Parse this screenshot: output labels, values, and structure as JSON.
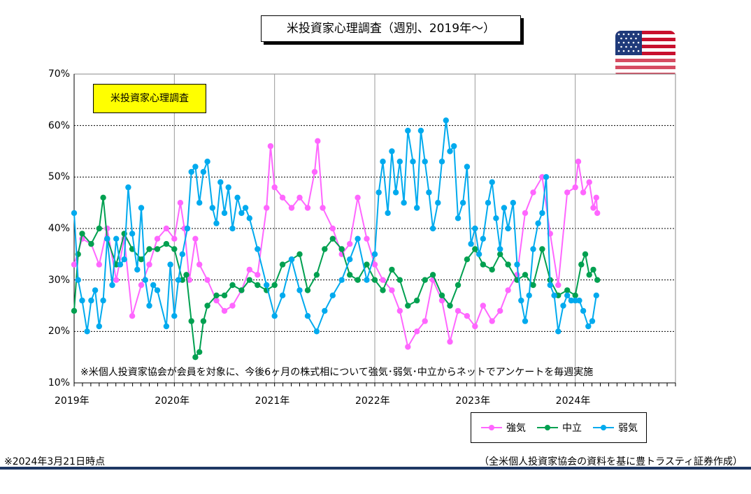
{
  "chart_data": {
    "type": "line",
    "title": "米投資家心理調査（週別、2019年～）",
    "inset_label": "米投資家心理調査",
    "note": "※米個人投資家協会が会員を対象に、今後6ヶ月の株式相について強気･弱気･中立からネットでアンケートを毎週実施",
    "ylim": [
      10,
      70
    ],
    "y_ticks": [
      "10%",
      "20%",
      "30%",
      "40%",
      "50%",
      "60%",
      "70%"
    ],
    "x_ticks": [
      "2019年",
      "2020年",
      "2021年",
      "2022年",
      "2023年",
      "2024年"
    ],
    "xlim": [
      2019.0,
      2025.0
    ],
    "grid": true,
    "legend_position": "bottom-right",
    "series": [
      {
        "name": "強気",
        "color": "#ff66ff",
        "points": [
          [
            2019.0,
            33
          ],
          [
            2019.08,
            38
          ],
          [
            2019.17,
            37
          ],
          [
            2019.25,
            33
          ],
          [
            2019.33,
            40
          ],
          [
            2019.42,
            30
          ],
          [
            2019.5,
            38
          ],
          [
            2019.58,
            23
          ],
          [
            2019.67,
            29
          ],
          [
            2019.75,
            33
          ],
          [
            2019.83,
            38
          ],
          [
            2019.92,
            40
          ],
          [
            2020.0,
            38
          ],
          [
            2020.06,
            45
          ],
          [
            2020.1,
            40
          ],
          [
            2020.15,
            30
          ],
          [
            2020.21,
            38
          ],
          [
            2020.25,
            33
          ],
          [
            2020.33,
            30
          ],
          [
            2020.42,
            26
          ],
          [
            2020.5,
            24
          ],
          [
            2020.58,
            25
          ],
          [
            2020.67,
            28
          ],
          [
            2020.75,
            32
          ],
          [
            2020.83,
            31
          ],
          [
            2020.92,
            44
          ],
          [
            2020.96,
            56
          ],
          [
            2021.0,
            48
          ],
          [
            2021.08,
            46
          ],
          [
            2021.17,
            44
          ],
          [
            2021.25,
            46
          ],
          [
            2021.33,
            44
          ],
          [
            2021.4,
            51
          ],
          [
            2021.43,
            57
          ],
          [
            2021.48,
            44
          ],
          [
            2021.58,
            40
          ],
          [
            2021.67,
            35
          ],
          [
            2021.75,
            37
          ],
          [
            2021.83,
            46
          ],
          [
            2021.92,
            38
          ],
          [
            2022.0,
            33
          ],
          [
            2022.08,
            30
          ],
          [
            2022.17,
            28
          ],
          [
            2022.25,
            24
          ],
          [
            2022.33,
            17
          ],
          [
            2022.42,
            20
          ],
          [
            2022.5,
            22
          ],
          [
            2022.58,
            30
          ],
          [
            2022.67,
            26
          ],
          [
            2022.75,
            18
          ],
          [
            2022.83,
            24
          ],
          [
            2022.92,
            23
          ],
          [
            2023.0,
            21
          ],
          [
            2023.08,
            25
          ],
          [
            2023.17,
            22
          ],
          [
            2023.25,
            24
          ],
          [
            2023.33,
            28
          ],
          [
            2023.42,
            31
          ],
          [
            2023.5,
            43
          ],
          [
            2023.58,
            47
          ],
          [
            2023.67,
            50
          ],
          [
            2023.75,
            39
          ],
          [
            2023.83,
            29
          ],
          [
            2023.92,
            47
          ],
          [
            2024.0,
            48
          ],
          [
            2024.03,
            53
          ],
          [
            2024.08,
            47
          ],
          [
            2024.14,
            49
          ],
          [
            2024.18,
            44
          ],
          [
            2024.21,
            46
          ],
          [
            2024.22,
            43
          ]
        ]
      },
      {
        "name": "中立",
        "color": "#00a050",
        "points": [
          [
            2019.0,
            24
          ],
          [
            2019.04,
            35
          ],
          [
            2019.08,
            39
          ],
          [
            2019.17,
            37
          ],
          [
            2019.25,
            40
          ],
          [
            2019.29,
            46
          ],
          [
            2019.33,
            38
          ],
          [
            2019.42,
            33
          ],
          [
            2019.5,
            39
          ],
          [
            2019.58,
            36
          ],
          [
            2019.67,
            34
          ],
          [
            2019.75,
            36
          ],
          [
            2019.83,
            36
          ],
          [
            2019.92,
            37
          ],
          [
            2020.0,
            36
          ],
          [
            2020.08,
            30
          ],
          [
            2020.12,
            31
          ],
          [
            2020.17,
            22
          ],
          [
            2020.21,
            15
          ],
          [
            2020.25,
            16
          ],
          [
            2020.29,
            22
          ],
          [
            2020.33,
            25
          ],
          [
            2020.42,
            27
          ],
          [
            2020.5,
            27
          ],
          [
            2020.58,
            29
          ],
          [
            2020.67,
            28
          ],
          [
            2020.75,
            30
          ],
          [
            2020.83,
            29
          ],
          [
            2020.92,
            28
          ],
          [
            2021.0,
            29
          ],
          [
            2021.08,
            33
          ],
          [
            2021.17,
            34
          ],
          [
            2021.25,
            35
          ],
          [
            2021.33,
            28
          ],
          [
            2021.42,
            31
          ],
          [
            2021.5,
            36
          ],
          [
            2021.58,
            38
          ],
          [
            2021.67,
            36
          ],
          [
            2021.75,
            31
          ],
          [
            2021.83,
            30
          ],
          [
            2021.92,
            33
          ],
          [
            2022.0,
            30
          ],
          [
            2022.08,
            28
          ],
          [
            2022.17,
            32
          ],
          [
            2022.25,
            30
          ],
          [
            2022.33,
            25
          ],
          [
            2022.42,
            26
          ],
          [
            2022.5,
            30
          ],
          [
            2022.58,
            31
          ],
          [
            2022.67,
            27
          ],
          [
            2022.75,
            25
          ],
          [
            2022.83,
            29
          ],
          [
            2022.92,
            34
          ],
          [
            2023.0,
            36
          ],
          [
            2023.08,
            33
          ],
          [
            2023.17,
            32
          ],
          [
            2023.25,
            35
          ],
          [
            2023.33,
            33
          ],
          [
            2023.42,
            30
          ],
          [
            2023.5,
            31
          ],
          [
            2023.58,
            29
          ],
          [
            2023.67,
            36
          ],
          [
            2023.75,
            30
          ],
          [
            2023.83,
            27
          ],
          [
            2023.92,
            28
          ],
          [
            2024.0,
            27
          ],
          [
            2024.06,
            33
          ],
          [
            2024.1,
            35
          ],
          [
            2024.14,
            31
          ],
          [
            2024.18,
            32
          ],
          [
            2024.22,
            30
          ]
        ]
      },
      {
        "name": "弱気",
        "color": "#00aaee",
        "points": [
          [
            2019.0,
            43
          ],
          [
            2019.04,
            30
          ],
          [
            2019.08,
            26
          ],
          [
            2019.13,
            20
          ],
          [
            2019.17,
            26
          ],
          [
            2019.21,
            28
          ],
          [
            2019.25,
            21
          ],
          [
            2019.29,
            26
          ],
          [
            2019.33,
            38
          ],
          [
            2019.38,
            29
          ],
          [
            2019.42,
            38
          ],
          [
            2019.46,
            33
          ],
          [
            2019.5,
            34
          ],
          [
            2019.54,
            48
          ],
          [
            2019.58,
            39
          ],
          [
            2019.63,
            32
          ],
          [
            2019.67,
            44
          ],
          [
            2019.71,
            30
          ],
          [
            2019.75,
            25
          ],
          [
            2019.79,
            29
          ],
          [
            2019.83,
            28
          ],
          [
            2019.92,
            21
          ],
          [
            2019.96,
            33
          ],
          [
            2020.0,
            23
          ],
          [
            2020.04,
            30
          ],
          [
            2020.08,
            35
          ],
          [
            2020.13,
            40
          ],
          [
            2020.17,
            51
          ],
          [
            2020.21,
            52
          ],
          [
            2020.25,
            45
          ],
          [
            2020.29,
            51
          ],
          [
            2020.33,
            53
          ],
          [
            2020.38,
            44
          ],
          [
            2020.42,
            41
          ],
          [
            2020.46,
            49
          ],
          [
            2020.5,
            43
          ],
          [
            2020.54,
            48
          ],
          [
            2020.58,
            40
          ],
          [
            2020.63,
            46
          ],
          [
            2020.67,
            43
          ],
          [
            2020.71,
            44
          ],
          [
            2020.75,
            42
          ],
          [
            2020.83,
            36
          ],
          [
            2020.92,
            29
          ],
          [
            2021.0,
            23
          ],
          [
            2021.08,
            27
          ],
          [
            2021.17,
            34
          ],
          [
            2021.25,
            28
          ],
          [
            2021.33,
            23
          ],
          [
            2021.42,
            20
          ],
          [
            2021.5,
            24
          ],
          [
            2021.58,
            27
          ],
          [
            2021.67,
            30
          ],
          [
            2021.75,
            34
          ],
          [
            2021.83,
            38
          ],
          [
            2021.92,
            30
          ],
          [
            2022.0,
            35
          ],
          [
            2022.04,
            47
          ],
          [
            2022.08,
            53
          ],
          [
            2022.13,
            43
          ],
          [
            2022.17,
            55
          ],
          [
            2022.21,
            47
          ],
          [
            2022.25,
            53
          ],
          [
            2022.29,
            45
          ],
          [
            2022.33,
            59
          ],
          [
            2022.38,
            53
          ],
          [
            2022.42,
            44
          ],
          [
            2022.46,
            59
          ],
          [
            2022.5,
            53
          ],
          [
            2022.54,
            47
          ],
          [
            2022.58,
            40
          ],
          [
            2022.63,
            45
          ],
          [
            2022.67,
            53
          ],
          [
            2022.71,
            61
          ],
          [
            2022.75,
            55
          ],
          [
            2022.79,
            56
          ],
          [
            2022.83,
            42
          ],
          [
            2022.88,
            45
          ],
          [
            2022.92,
            52
          ],
          [
            2022.96,
            37
          ],
          [
            2023.0,
            40
          ],
          [
            2023.04,
            35
          ],
          [
            2023.08,
            38
          ],
          [
            2023.13,
            45
          ],
          [
            2023.17,
            49
          ],
          [
            2023.21,
            42
          ],
          [
            2023.25,
            36
          ],
          [
            2023.29,
            44
          ],
          [
            2023.33,
            40
          ],
          [
            2023.38,
            45
          ],
          [
            2023.42,
            33
          ],
          [
            2023.46,
            26
          ],
          [
            2023.5,
            22
          ],
          [
            2023.54,
            27
          ],
          [
            2023.58,
            36
          ],
          [
            2023.63,
            41
          ],
          [
            2023.67,
            43
          ],
          [
            2023.71,
            50
          ],
          [
            2023.75,
            29
          ],
          [
            2023.79,
            27
          ],
          [
            2023.83,
            20
          ],
          [
            2023.88,
            25
          ],
          [
            2023.92,
            27
          ],
          [
            2023.96,
            26
          ],
          [
            2024.0,
            26
          ],
          [
            2024.04,
            26
          ],
          [
            2024.08,
            24
          ],
          [
            2024.13,
            21
          ],
          [
            2024.17,
            22
          ],
          [
            2024.21,
            27
          ]
        ]
      }
    ]
  },
  "legend": {
    "items": [
      "強気",
      "中立",
      "弱気"
    ]
  },
  "footer": {
    "date_note": "※2024年3月21日時点",
    "source": "（全米個人投資家協会の資料を基に豊トラスティ証券作成）"
  },
  "colors": {
    "bottom_bar": "#1f3864",
    "inset_bg": "#ffff00"
  }
}
